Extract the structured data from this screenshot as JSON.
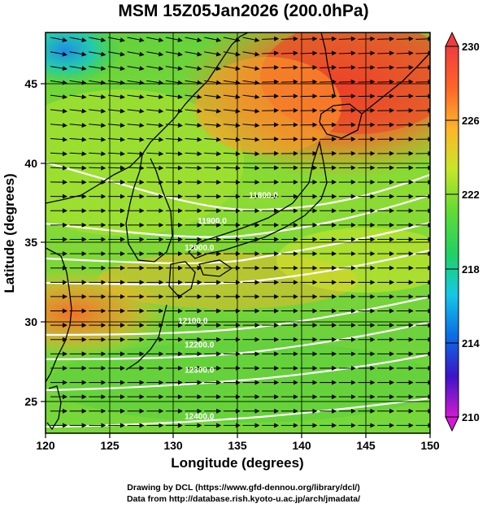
{
  "title": "MSM 15Z05Jan2026 (200.0hPa)",
  "x_axis": {
    "label": "Longitude (degrees)",
    "range": [
      120,
      150
    ],
    "ticks": [
      "120",
      "125",
      "130",
      "135",
      "140",
      "145",
      "150"
    ]
  },
  "y_axis": {
    "label": "Latitude  (degrees)",
    "range": [
      22.4,
      47.6
    ],
    "ticks": [
      "25",
      "30",
      "35",
      "40",
      "45"
    ]
  },
  "colorbar": {
    "range": [
      210,
      230
    ],
    "ticks": [
      "230",
      "226",
      "222",
      "218",
      "214",
      "210"
    ],
    "colors": [
      "#d21ad2",
      "#3c14c8",
      "#0a6ee6",
      "#14c8e6",
      "#1ed264",
      "#64dc32",
      "#c8e628",
      "#ffb428",
      "#ff6428",
      "#f03c3c"
    ]
  },
  "contour_labels": [
    {
      "text": "11800.0",
      "lon": 137.0,
      "lat": 37.2
    },
    {
      "text": "11900.0",
      "lon": 133.0,
      "lat": 35.6
    },
    {
      "text": "12000.0",
      "lon": 132.0,
      "lat": 33.9
    },
    {
      "text": "12100.0",
      "lon": 131.5,
      "lat": 29.3
    },
    {
      "text": "12200.0",
      "lon": 132.0,
      "lat": 27.8
    },
    {
      "text": "12300.0",
      "lon": 132.0,
      "lat": 26.2
    },
    {
      "text": "12400.0",
      "lon": 132.0,
      "lat": 23.3
    }
  ],
  "credit": {
    "line1": "Drawing by DCL (https://www.gfd-dennou.org/library/dcl/)",
    "line2": "Data from http://database.rish.kyoto-u.ac.jp/arch/jmadata/"
  }
}
